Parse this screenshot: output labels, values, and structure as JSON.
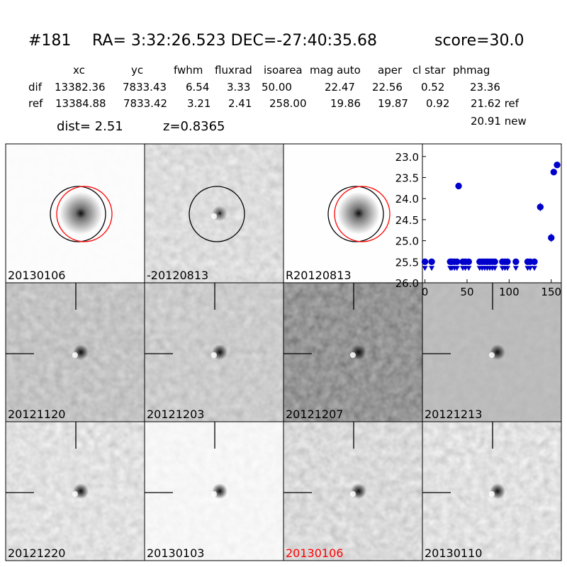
{
  "header": {
    "id": "#181",
    "coords": "RA= 3:32:26.523 DEC=-27:40:35.68",
    "score": "score=30.0"
  },
  "table": {
    "columns": [
      "xc",
      "yc",
      "fwhm",
      "fluxrad",
      "isoarea",
      "mag auto",
      "aper",
      "cl star",
      "phmag"
    ],
    "rows": [
      [
        "dif",
        "13382.36",
        "7833.43",
        "6.54",
        "3.33",
        "50.00",
        "22.47",
        "22.56",
        "0.52",
        "23.36"
      ],
      [
        "ref",
        "13384.88",
        "7833.42",
        "3.21",
        "2.41",
        "258.00",
        "19.86",
        "19.87",
        "0.92",
        "21.62 ref"
      ]
    ],
    "extra": "20.91 new"
  },
  "dist": "dist=  2.51",
  "redshift": "z=0.8365",
  "panels": [
    {
      "label": "20130106"
    },
    {
      "label": "-20120813"
    },
    {
      "label": "R20120813"
    },
    {
      "label": "20121120"
    },
    {
      "label": "20121203"
    },
    {
      "label": "20121207"
    },
    {
      "label": "20121213"
    },
    {
      "label": "20121220"
    },
    {
      "label": "20130103"
    },
    {
      "label": "20130106",
      "color": "#ff0000"
    },
    {
      "label": "20130110"
    }
  ],
  "chart_data": {
    "type": "scatter",
    "xlim": [
      -3,
      162
    ],
    "ylim": [
      26.0,
      22.7
    ],
    "xticks": [
      0,
      50,
      100,
      150
    ],
    "yticks": [
      {
        "value": 23.0,
        "label": "23.0"
      },
      {
        "value": 23.5,
        "label": "23.5"
      },
      {
        "value": 24.0,
        "label": "24.0"
      },
      {
        "value": 24.5,
        "label": "24.5"
      },
      {
        "value": 25.0,
        "label": "25.0"
      },
      {
        "value": 25.5,
        "label": "25.5"
      },
      {
        "value": 26.0,
        "label": "26.0"
      }
    ],
    "series": [
      {
        "color": "#0000cc",
        "x": [
          40,
          137,
          150,
          153,
          157
        ],
        "values": [
          23.7,
          24.2,
          24.93,
          23.37,
          23.2
        ],
        "errors": [
          0.04,
          0.1,
          0.1,
          0.03,
          0.04
        ]
      },
      {
        "color": "#0000cc",
        "upper_limit": true,
        "x": [
          0,
          8,
          30,
          32,
          35,
          38,
          45,
          48,
          52,
          65,
          68,
          71,
          74,
          77,
          80,
          83,
          92,
          95,
          98,
          108,
          122,
          125,
          130
        ],
        "values": [
          25.5,
          25.5,
          25.5,
          25.5,
          25.5,
          25.5,
          25.5,
          25.5,
          25.5,
          25.5,
          25.5,
          25.5,
          25.5,
          25.5,
          25.5,
          25.5,
          25.5,
          25.5,
          25.5,
          25.5,
          25.5,
          25.5,
          25.5
        ]
      }
    ]
  }
}
